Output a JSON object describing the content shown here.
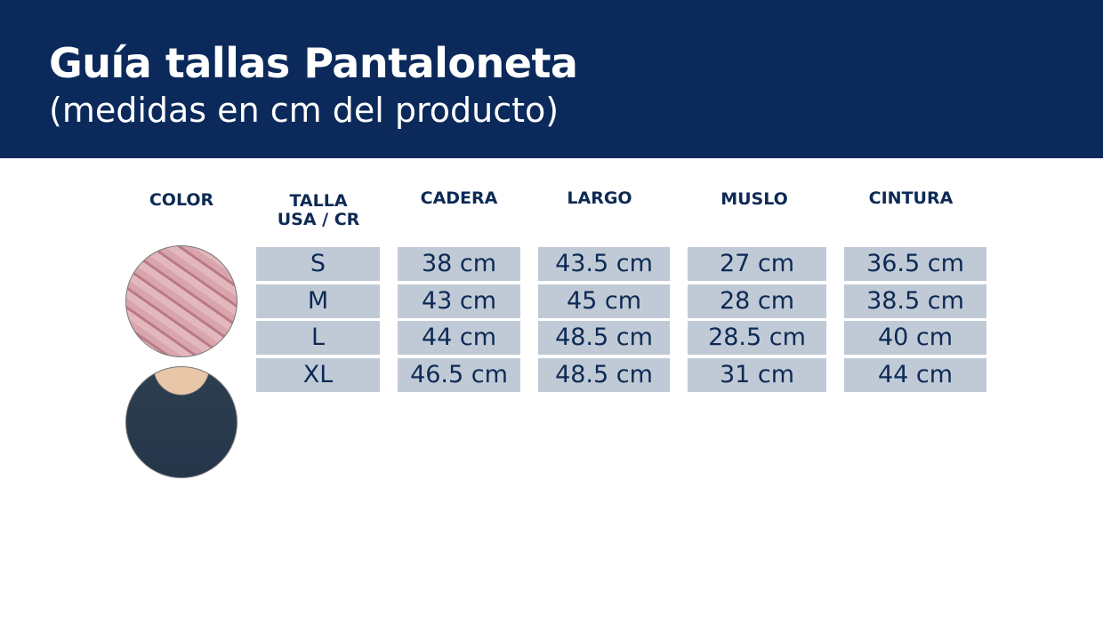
{
  "header": {
    "title": "Guía tallas Pantaloneta",
    "subtitle": "(medidas en cm del producto)"
  },
  "columns": {
    "color": "COLOR",
    "talla_1": "TALLA",
    "talla_2": "USA / CR",
    "cadera": "CADERA",
    "largo": "LARGO",
    "muslo": "MUSLO",
    "cintura": "CINTURA"
  },
  "swatches": [
    {
      "name": "pink-palm-print",
      "color": "#d9a9b0"
    },
    {
      "name": "navy-heather",
      "color": "#2c3e50"
    }
  ],
  "rows": [
    {
      "talla": "S",
      "cadera": "38 cm",
      "largo": "43.5 cm",
      "muslo": "27 cm",
      "cintura": "36.5 cm"
    },
    {
      "talla": "M",
      "cadera": "43 cm",
      "largo": "45 cm",
      "muslo": "28 cm",
      "cintura": "38.5 cm"
    },
    {
      "talla": "L",
      "cadera": "44 cm",
      "largo": "48.5 cm",
      "muslo": "28.5 cm",
      "cintura": "40 cm"
    },
    {
      "talla": "XL",
      "cadera": "46.5 cm",
      "largo": "48.5 cm",
      "muslo": "31 cm",
      "cintura": "44 cm"
    }
  ]
}
